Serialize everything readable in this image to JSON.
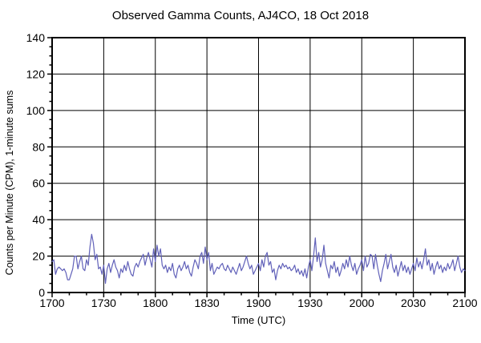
{
  "title": "Observed Gamma Counts, AJ4CO, 18 Oct 2018",
  "chart_data": {
    "type": "line",
    "title": "Observed Gamma Counts, AJ4CO, 18 Oct 2018",
    "xlabel": "Time (UTC)",
    "ylabel": "Counts per Minute (CPM), 1-minute sums",
    "series_name": "Observed gamma counts, 1-minute sums",
    "x_start_label": "1700",
    "x_end_label": "2100",
    "x_minutes_span": 240,
    "x_major_tick_interval_min": 30,
    "x_minor_tick_interval_min": 10,
    "x_tick_labels": [
      "1700",
      "1730",
      "1800",
      "1830",
      "1900",
      "1930",
      "2000",
      "2030",
      "2100"
    ],
    "ylim": [
      0,
      140
    ],
    "y_major_tick_interval": 20,
    "y_minor_tick_interval": 5,
    "y_tick_labels": [
      "0",
      "20",
      "40",
      "60",
      "80",
      "100",
      "120",
      "140"
    ],
    "grid": "major gridlines on",
    "legend": "none",
    "colors": {
      "line": "#6161B9",
      "grid": "#000000",
      "frame": "#000000",
      "background": "#FFFFFF",
      "text": "#000000"
    },
    "values": [
      17,
      18,
      10,
      13,
      14,
      13,
      12,
      13,
      11,
      7,
      7,
      10,
      13,
      20,
      20,
      13,
      17,
      20,
      13,
      12,
      18,
      15,
      25,
      32,
      27,
      18,
      21,
      13,
      14,
      10,
      15,
      5,
      13,
      16,
      11,
      15,
      18,
      14,
      12,
      8,
      13,
      11,
      15,
      12,
      17,
      13,
      10,
      9,
      14,
      16,
      14,
      17,
      19,
      21,
      15,
      19,
      22,
      18,
      14,
      24,
      17,
      26,
      20,
      24,
      15,
      13,
      15,
      11,
      14,
      12,
      16,
      10,
      8,
      13,
      15,
      12,
      14,
      17,
      13,
      15,
      11,
      9,
      14,
      18,
      16,
      13,
      20,
      22,
      16,
      25,
      18,
      22,
      12,
      16,
      10,
      12,
      14,
      13,
      15,
      16,
      13,
      12,
      15,
      13,
      11,
      14,
      12,
      10,
      13,
      16,
      12,
      14,
      17,
      20,
      16,
      13,
      15,
      10,
      12,
      14,
      16,
      12,
      18,
      14,
      20,
      22,
      15,
      17,
      11,
      13,
      7,
      12,
      15,
      13,
      16,
      14,
      15,
      13,
      14,
      12,
      13,
      15,
      11,
      13,
      10,
      12,
      9,
      13,
      8,
      14,
      18,
      12,
      20,
      30,
      17,
      22,
      14,
      18,
      26,
      16,
      12,
      8,
      15,
      13,
      17,
      11,
      14,
      9,
      12,
      16,
      13,
      18,
      14,
      20,
      15,
      12,
      16,
      10,
      13,
      15,
      18,
      12,
      20,
      14,
      16,
      21,
      20,
      13,
      21,
      15,
      10,
      6,
      12,
      16,
      21,
      13,
      17,
      21,
      14,
      11,
      15,
      9,
      13,
      17,
      12,
      15,
      11,
      14,
      10,
      13,
      16,
      12,
      19,
      14,
      17,
      13,
      18,
      24,
      15,
      18,
      12,
      16,
      10,
      14,
      17,
      13,
      15,
      11,
      14,
      12,
      16,
      13,
      15,
      18,
      12,
      16,
      20,
      14,
      11,
      13,
      12
    ]
  }
}
